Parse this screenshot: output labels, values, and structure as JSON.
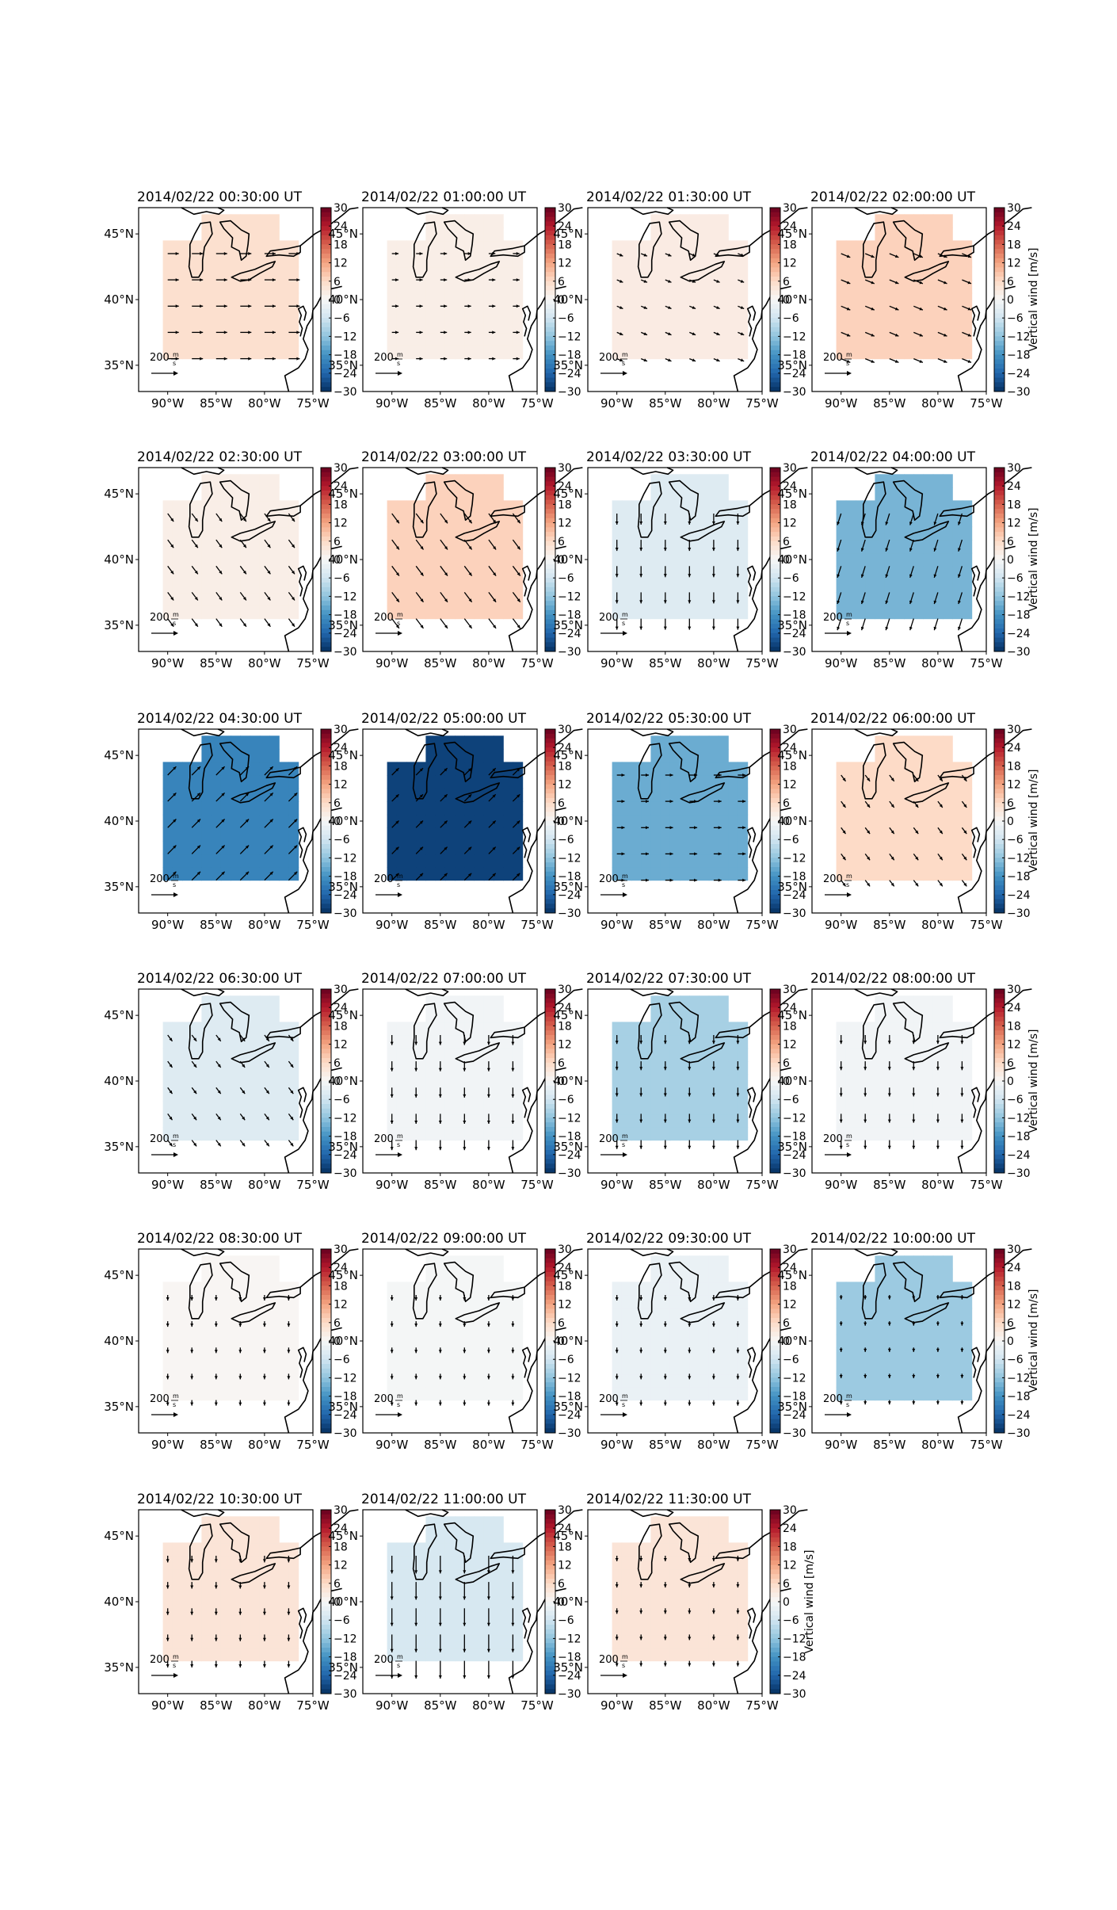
{
  "figure": {
    "panels": [
      {
        "title": "2014/02/22 00:30:00 UT",
        "value": 5,
        "arrow_dir": "east",
        "arrow_len": 1.0,
        "colorbar_label": ""
      },
      {
        "title": "2014/02/22 01:00:00 UT",
        "value": 2,
        "arrow_dir": "east",
        "arrow_len": 0.6,
        "colorbar_label": ""
      },
      {
        "title": "2014/02/22 01:30:00 UT",
        "value": 2.5,
        "arrow_dir": "ese",
        "arrow_len": 0.6,
        "colorbar_label": ""
      },
      {
        "title": "2014/02/22 02:00:00 UT",
        "value": 7,
        "arrow_dir": "ese",
        "arrow_len": 0.9,
        "colorbar_label": "Vertical wind [m/s]"
      },
      {
        "title": "2014/02/22 02:30:00 UT",
        "value": 2,
        "arrow_dir": "se",
        "arrow_len": 0.9,
        "colorbar_label": ""
      },
      {
        "title": "2014/02/22 03:00:00 UT",
        "value": 7,
        "arrow_dir": "se",
        "arrow_len": 1.1,
        "colorbar_label": ""
      },
      {
        "title": "2014/02/22 03:30:00 UT",
        "value": -4,
        "arrow_dir": "south",
        "arrow_len": 1.0,
        "colorbar_label": ""
      },
      {
        "title": "2014/02/22 04:00:00 UT",
        "value": -14,
        "arrow_dir": "ssw",
        "arrow_len": 1.1,
        "colorbar_label": "Vertical wind [m/s]"
      },
      {
        "title": "2014/02/22 04:30:00 UT",
        "value": -20,
        "arrow_dir": "ne",
        "arrow_len": 1.1,
        "colorbar_label": ""
      },
      {
        "title": "2014/02/22 05:00:00 UT",
        "value": -28,
        "arrow_dir": "ne",
        "arrow_len": 0.9,
        "colorbar_label": ""
      },
      {
        "title": "2014/02/22 05:30:00 UT",
        "value": -15,
        "arrow_dir": "east",
        "arrow_len": 0.7,
        "colorbar_label": ""
      },
      {
        "title": "2014/02/22 06:00:00 UT",
        "value": 6,
        "arrow_dir": "se",
        "arrow_len": 0.7,
        "colorbar_label": "Vertical wind [m/s]"
      },
      {
        "title": "2014/02/22 06:30:00 UT",
        "value": -4,
        "arrow_dir": "se",
        "arrow_len": 0.7,
        "colorbar_label": ""
      },
      {
        "title": "2014/02/22 07:00:00 UT",
        "value": -1,
        "arrow_dir": "south",
        "arrow_len": 0.9,
        "colorbar_label": ""
      },
      {
        "title": "2014/02/22 07:30:00 UT",
        "value": -10,
        "arrow_dir": "south",
        "arrow_len": 0.8,
        "colorbar_label": ""
      },
      {
        "title": "2014/02/22 08:00:00 UT",
        "value": -1,
        "arrow_dir": "south",
        "arrow_len": 0.8,
        "colorbar_label": "Vertical wind [m/s]"
      },
      {
        "title": "2014/02/22 08:30:00 UT",
        "value": 0.5,
        "arrow_dir": "south",
        "arrow_len": 0.5,
        "colorbar_label": ""
      },
      {
        "title": "2014/02/22 09:00:00 UT",
        "value": -0.5,
        "arrow_dir": "south",
        "arrow_len": 0.5,
        "colorbar_label": ""
      },
      {
        "title": "2014/02/22 09:30:00 UT",
        "value": -2,
        "arrow_dir": "south",
        "arrow_len": 0.5,
        "colorbar_label": ""
      },
      {
        "title": "2014/02/22 10:00:00 UT",
        "value": -11,
        "arrow_dir": "south",
        "arrow_len": 0.4,
        "colorbar_label": "Vertical wind [m/s]"
      },
      {
        "title": "2014/02/22 10:30:00 UT",
        "value": 4,
        "arrow_dir": "south",
        "arrow_len": 0.6,
        "colorbar_label": ""
      },
      {
        "title": "2014/02/22 11:00:00 UT",
        "value": -5,
        "arrow_dir": "south",
        "arrow_len": 1.6,
        "colorbar_label": ""
      },
      {
        "title": "2014/02/22 11:30:00 UT",
        "value": 4,
        "arrow_dir": "south",
        "arrow_len": 0.5,
        "colorbar_label": "Vertical wind [m/s]"
      }
    ],
    "colorbar": {
      "ticks": [
        "30",
        "24",
        "18",
        "12",
        "6",
        "0",
        "−6",
        "−12",
        "−18",
        "−24",
        "−30"
      ],
      "range": [
        -30,
        30
      ],
      "colors": [
        "#67001f",
        "#b2182b",
        "#d6604d",
        "#f4a582",
        "#fddbc7",
        "#f7f7f7",
        "#d1e5f0",
        "#92c5de",
        "#4393c3",
        "#2166ac",
        "#053061"
      ]
    },
    "axes": {
      "lon_ticks": [
        "90°W",
        "85°W",
        "80°W",
        "75°W"
      ],
      "lat_ticks": [
        "45°N",
        "40°N",
        "35°N"
      ]
    },
    "quiver_key": {
      "number": "200",
      "unit_num": "m",
      "unit_den": "s"
    }
  }
}
